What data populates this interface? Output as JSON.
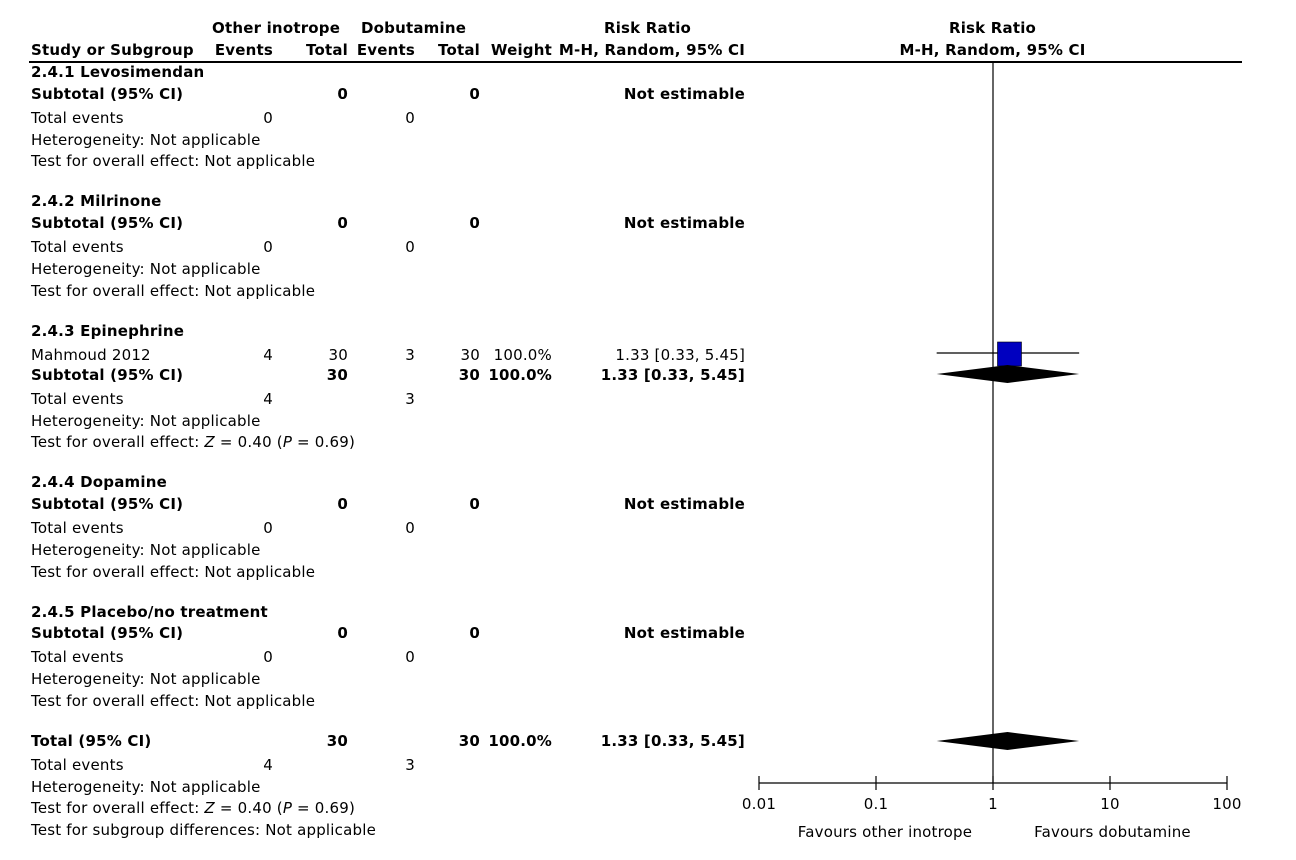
{
  "header": {
    "group1": "Other inotrope",
    "group2": "Dobutamine",
    "risk_ratio": "Risk Ratio",
    "method_ci": "M-H, Random, 95% CI",
    "plot_title": "Risk Ratio",
    "plot_method": "M-H, Random, 95% CI",
    "study_col": "Study or Subgroup",
    "events": "Events",
    "total": "Total",
    "weight": "Weight"
  },
  "labels": {
    "subtotal": "Subtotal (95% CI)",
    "total_events": "Total events",
    "heterogeneity": "Heterogeneity: Not applicable",
    "test_na": "Test for overall effect: Not applicable",
    "not_estimable": "Not estimable",
    "overall_total": "Total (95% CI)",
    "z_prefix": "Test for overall effect: ",
    "z_var": "Z",
    "z_mid": " = 0.40 (",
    "p_var": "P",
    "p_end": " = 0.69)",
    "subgroup_diff": "Test for subgroup differences: Not applicable"
  },
  "subgroups": [
    {
      "name": "2.4.1 Levosimendan",
      "sub_t1": "0",
      "sub_t2": "0",
      "ev1": "0",
      "ev2": "0"
    },
    {
      "name": "2.4.2 Milrinone",
      "sub_t1": "0",
      "sub_t2": "0",
      "ev1": "0",
      "ev2": "0"
    },
    {
      "name": "2.4.3 Epinephrine",
      "study": {
        "name": "Mahmoud 2012",
        "e1": "4",
        "t1": "30",
        "e2": "3",
        "t2": "30",
        "weight": "100.0%",
        "ci": "1.33 [0.33, 5.45]"
      },
      "sub_t1": "30",
      "sub_t2": "30",
      "sub_weight": "100.0%",
      "sub_ci": "1.33 [0.33, 5.45]",
      "ev1": "4",
      "ev2": "3"
    },
    {
      "name": "2.4.4 Dopamine",
      "sub_t1": "0",
      "sub_t2": "0",
      "ev1": "0",
      "ev2": "0"
    },
    {
      "name": "2.4.5 Placebo/no treatment",
      "sub_t1": "0",
      "sub_t2": "0",
      "ev1": "0",
      "ev2": "0"
    }
  ],
  "overall": {
    "t1": "30",
    "t2": "30",
    "weight": "100.0%",
    "ci": "1.33 [0.33, 5.45]",
    "ev1": "4",
    "ev2": "3"
  },
  "axis": {
    "ticks": [
      "0.01",
      "0.1",
      "1",
      "10",
      "100"
    ],
    "favours_left": "Favours other inotrope",
    "favours_right": "Favours dobutamine"
  },
  "chart_data": {
    "type": "forest",
    "scale": "log",
    "xlim": [
      0.01,
      100
    ],
    "null_value": 1,
    "tick_values": [
      0.01,
      0.1,
      1,
      10,
      100
    ],
    "studies": [
      {
        "name": "Mahmoud 2012",
        "rr": 1.33,
        "lower": 0.33,
        "upper": 5.45,
        "weight": 100.0
      }
    ],
    "subtotals": [
      {
        "name": "2.4.3 Epinephrine",
        "rr": 1.33,
        "lower": 0.33,
        "upper": 5.45
      }
    ],
    "overall": {
      "rr": 1.33,
      "lower": 0.33,
      "upper": 5.45
    },
    "study_marker_color": "#0000c0"
  }
}
